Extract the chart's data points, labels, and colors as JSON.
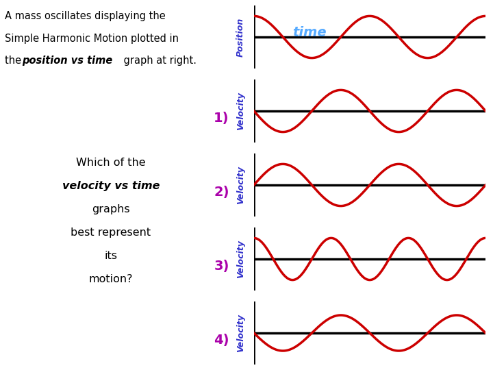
{
  "text_line1": "A mass oscillates displaying the",
  "text_line2": "Simple Harmonic Motion plotted in",
  "text_line3a": "the ",
  "text_line3b": "position vs time",
  "text_line3c": " graph at right.",
  "which1": "Which of the",
  "which2": "velocity vs time",
  "which3": "graphs",
  "which4": "best represent",
  "which5": "its",
  "which6": "motion?",
  "position_label": "Position",
  "time_label": "time",
  "velocity_label": "Velocity",
  "panel_numbers": [
    "1)",
    "2)",
    "3)",
    "4)"
  ],
  "wave_color": "#cc0000",
  "axis_color": "#000000",
  "blue": "#3333cc",
  "purple": "#aa00aa",
  "time_color": "#55aaff",
  "bg_color": "#ffffff",
  "phases": [
    0.0,
    1.5707963,
    -1.5707963,
    0.0,
    1.5707963
  ],
  "freqs": [
    1.0,
    1.0,
    1.0,
    1.5,
    1.0
  ],
  "amps": [
    1.0,
    1.0,
    1.0,
    1.0,
    0.85
  ]
}
